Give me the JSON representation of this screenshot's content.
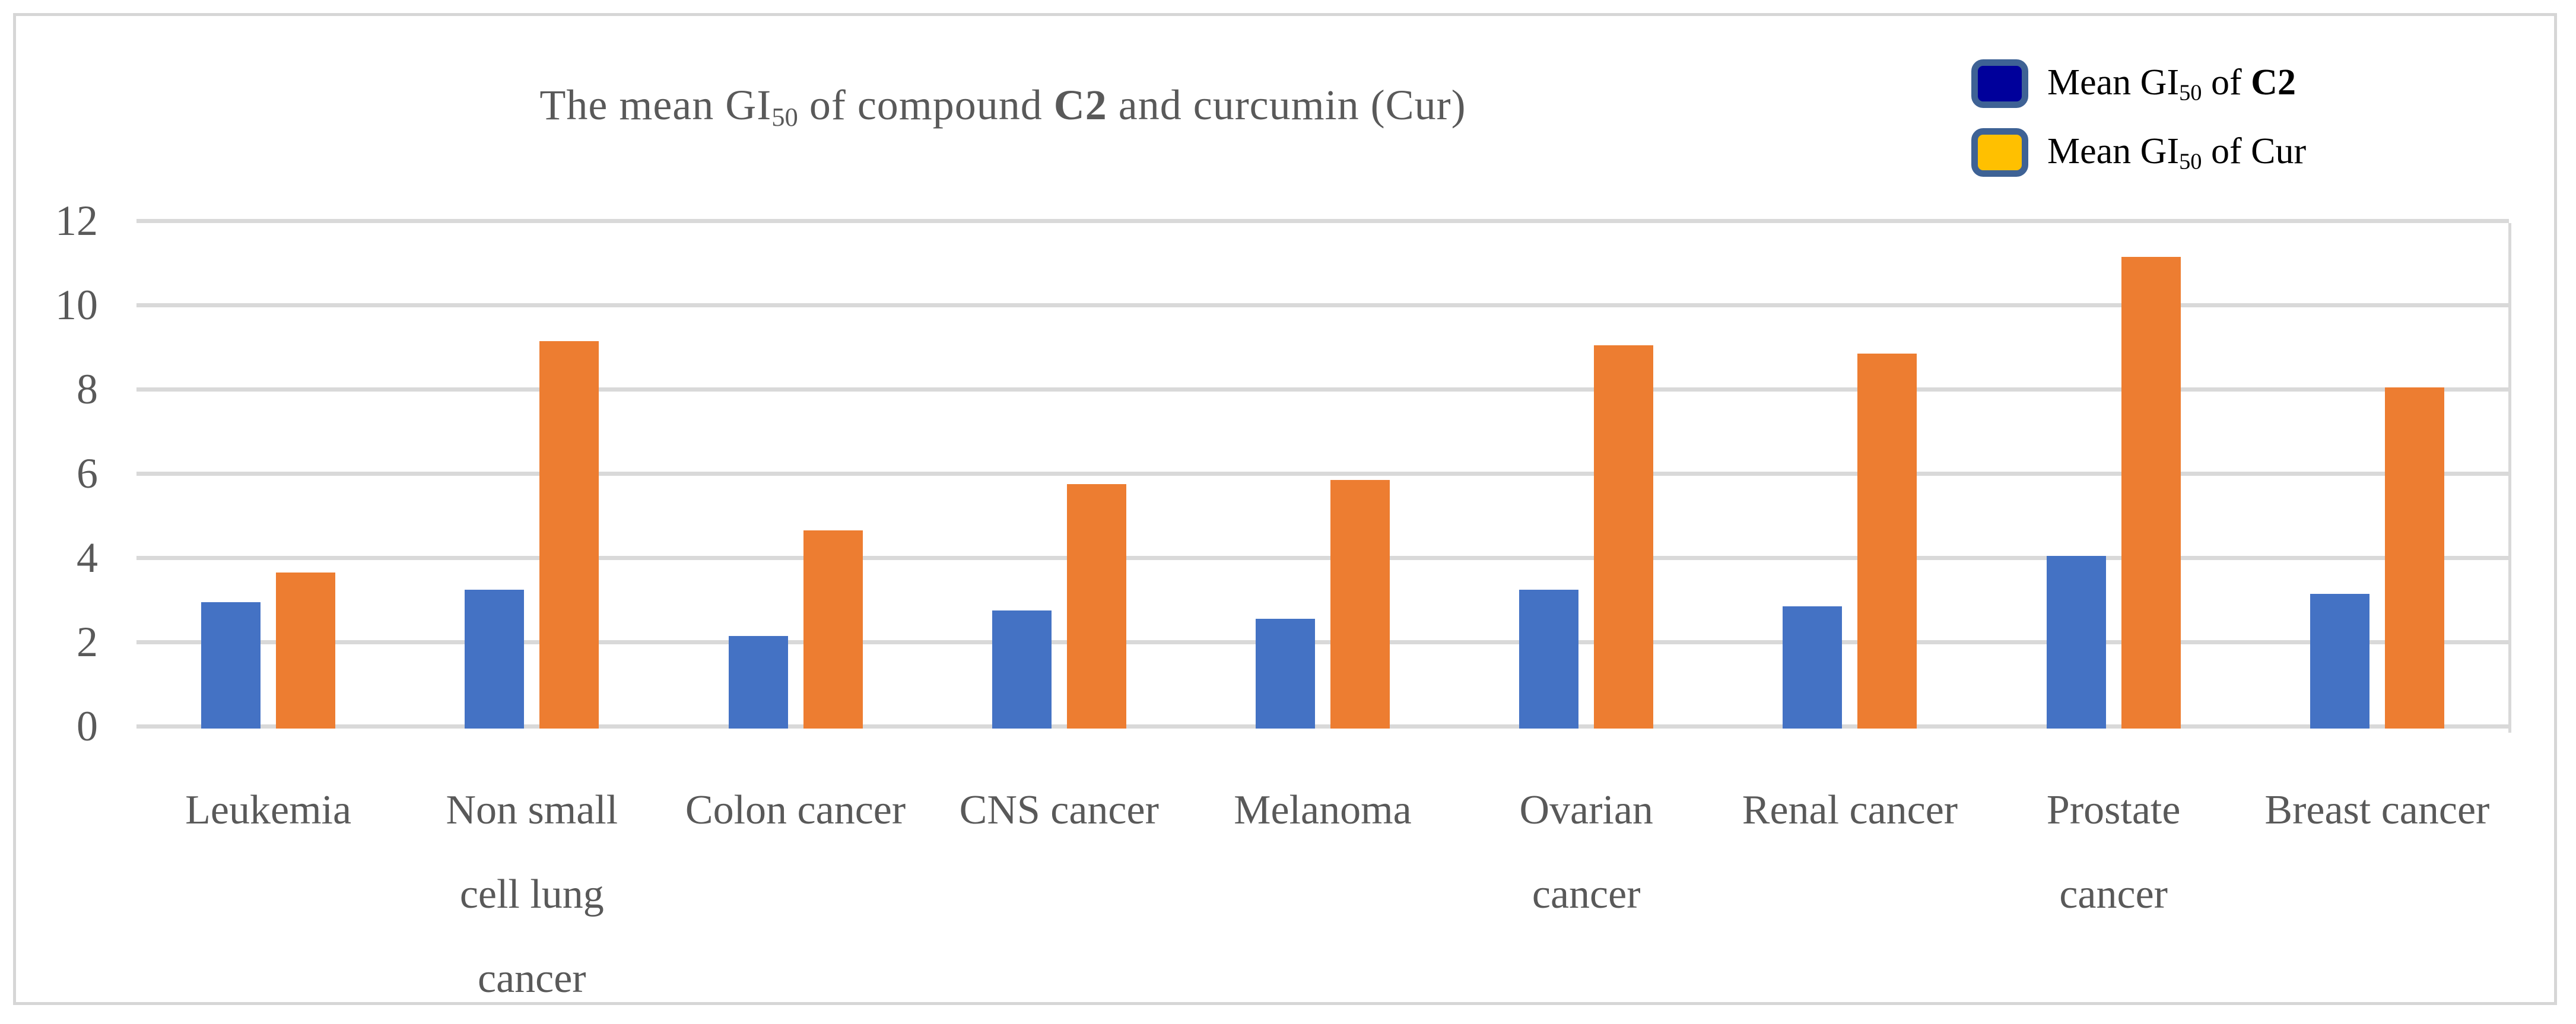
{
  "figure": {
    "background": "#FFFFFF",
    "border_color": "#D6D6D6"
  },
  "title": {
    "plain": "The mean GI50 of compound C2 and curcumin (Cur)",
    "parts": [
      {
        "t": "The mean GI"
      },
      {
        "t": "50",
        "sub": true
      },
      {
        "t": " of compound "
      },
      {
        "t": "C2",
        "bold": true
      },
      {
        "t": " and curcumin (Cur)"
      }
    ],
    "color": "#595959"
  },
  "legend": {
    "position": "top-right",
    "swatch_border": "#3E6295",
    "items": [
      {
        "plain": "Mean GI50 of C2",
        "swatch_fill": "#00009B",
        "parts": [
          {
            "t": "Mean GI"
          },
          {
            "t": "50",
            "sub": true
          },
          {
            "t": " of "
          },
          {
            "t": "C2",
            "bold": true
          }
        ]
      },
      {
        "plain": "Mean GI50 of Cur",
        "swatch_fill": "#FFC000",
        "parts": [
          {
            "t": "Mean GI"
          },
          {
            "t": "50",
            "sub": true
          },
          {
            "t": " of Cur"
          }
        ]
      }
    ]
  },
  "chart_data": {
    "type": "bar",
    "title": "The mean GI50 of compound C2 and curcumin (Cur)",
    "categories": [
      "Leukemia",
      "Non small cell lung cancer",
      "Colon cancer",
      "CNS cancer",
      "Melanoma",
      "Ovarian cancer",
      "Renal cancer",
      "Prostate cancer",
      "Breast cancer"
    ],
    "category_label_lines": [
      [
        "Leukemia"
      ],
      [
        "Non small",
        "cell lung",
        "cancer"
      ],
      [
        "Colon cancer"
      ],
      [
        "CNS cancer"
      ],
      [
        "Melanoma"
      ],
      [
        "Ovarian",
        "cancer"
      ],
      [
        "Renal cancer"
      ],
      [
        "Prostate",
        "cancer"
      ],
      [
        "Breast cancer"
      ]
    ],
    "series": [
      {
        "name": "Mean GI50 of C2",
        "color": "#4472C4",
        "values": [
          3.0,
          3.3,
          2.2,
          2.8,
          2.6,
          3.3,
          2.9,
          4.1,
          3.2
        ]
      },
      {
        "name": "Mean GI50 of Cur",
        "color": "#ED7D31",
        "values": [
          3.7,
          9.2,
          4.7,
          5.8,
          5.9,
          9.1,
          8.9,
          11.2,
          8.1
        ]
      }
    ],
    "xlabel": "",
    "ylabel": "",
    "ylim": [
      0,
      12
    ],
    "yticks": [
      0,
      2,
      4,
      6,
      8,
      10,
      12
    ],
    "grid": "horizontal",
    "gridline_color": "#D9D9D9",
    "baseline_color": "#D9D9D9",
    "axis_text_color": "#595959",
    "legend_position": "top-right"
  }
}
